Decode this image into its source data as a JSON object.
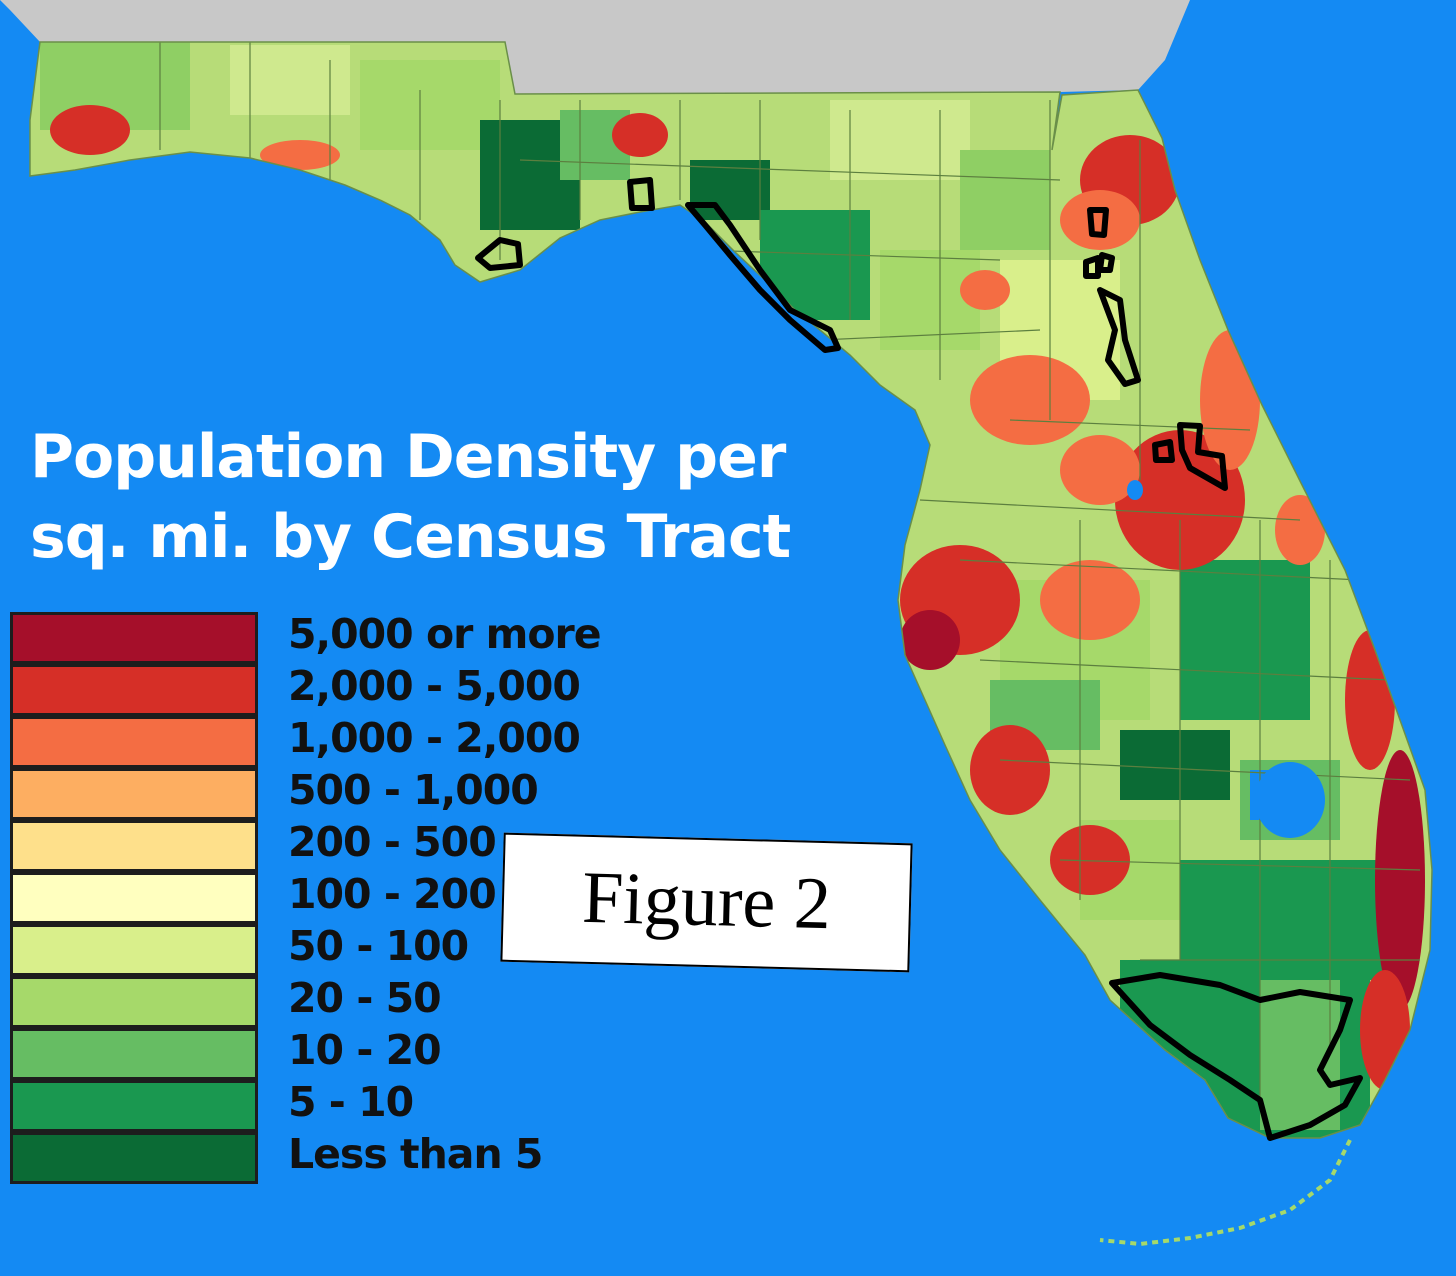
{
  "map": {
    "title_line1": "Population Density per",
    "title_line2": "sq. mi. by Census Tract",
    "colors": {
      "water": "#148af3",
      "land_outside": "#c8c8c8",
      "boundary_lines": "#5c7f3f",
      "highlight_outline": "#000000"
    },
    "legend": [
      {
        "label": "5,000 or more",
        "color": "#a50f2a"
      },
      {
        "label": "2,000 - 5,000",
        "color": "#d62f27"
      },
      {
        "label": "1,000 - 2,000",
        "color": "#f46d43"
      },
      {
        "label": "500 - 1,000",
        "color": "#fdae61"
      },
      {
        "label": "200 - 500",
        "color": "#fee08b"
      },
      {
        "label": "100 - 200",
        "color": "#ffffbf"
      },
      {
        "label": "50 - 100",
        "color": "#d9ef8b"
      },
      {
        "label": "20 - 50",
        "color": "#a6d96a"
      },
      {
        "label": "10 - 20",
        "color": "#66bd63"
      },
      {
        "label": "5 - 10",
        "color": "#1a9850"
      },
      {
        "label": "Less than 5",
        "color": "#0b6b35"
      }
    ],
    "figure_label": "Figure 2"
  }
}
